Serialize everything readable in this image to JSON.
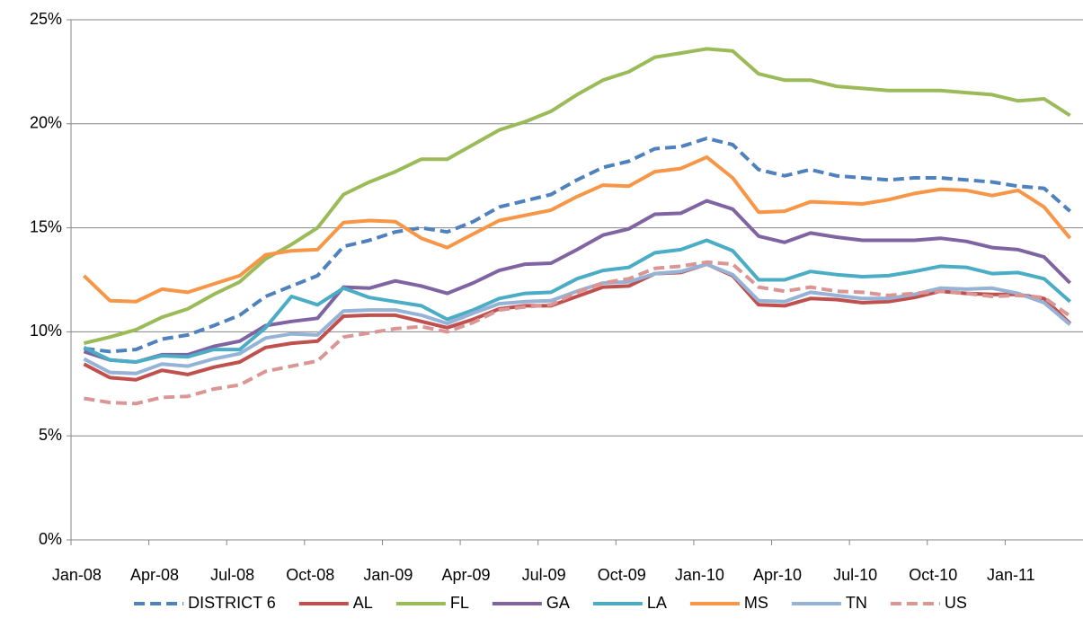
{
  "chart_data": {
    "type": "line",
    "categories": [
      "Jan-08",
      null,
      null,
      "Apr-08",
      null,
      null,
      "Jul-08",
      null,
      null,
      "Oct-08",
      null,
      null,
      "Jan-09",
      null,
      null,
      "Apr-09",
      null,
      null,
      "Jul-09",
      null,
      null,
      "Oct-09",
      null,
      null,
      "Jan-10",
      null,
      null,
      "Apr-10",
      null,
      null,
      "Jul-10",
      null,
      null,
      "Oct-10",
      null,
      null,
      "Jan-11",
      null,
      null
    ],
    "ylim": [
      0,
      25
    ],
    "yticks": [
      {
        "value": 0,
        "label": "0%"
      },
      {
        "value": 5,
        "label": "5%"
      },
      {
        "value": 10,
        "label": "10%"
      },
      {
        "value": 15,
        "label": "15%"
      },
      {
        "value": 20,
        "label": "20%"
      },
      {
        "value": 25,
        "label": "25%"
      }
    ],
    "grid": true,
    "legend": "bottom",
    "series": [
      {
        "name": "DISTRICT 6",
        "color": "#4f81bd",
        "dashed": true,
        "values": [
          9.2,
          9.05,
          9.15,
          9.65,
          9.85,
          10.3,
          10.8,
          11.7,
          12.2,
          12.7,
          14.1,
          14.4,
          14.8,
          15.0,
          14.8,
          15.3,
          16.0,
          16.3,
          16.6,
          17.3,
          17.9,
          18.2,
          18.8,
          18.9,
          19.3,
          19.0,
          17.8,
          17.5,
          17.8,
          17.5,
          17.4,
          17.3,
          17.4,
          17.4,
          17.3,
          17.2,
          17.0,
          16.9,
          15.8
        ]
      },
      {
        "name": "AL",
        "color": "#c0504d",
        "dashed": false,
        "values": [
          8.45,
          7.8,
          7.7,
          8.15,
          7.95,
          8.3,
          8.55,
          9.25,
          9.45,
          9.55,
          10.75,
          10.8,
          10.8,
          10.5,
          10.2,
          10.6,
          11.1,
          11.25,
          11.25,
          11.7,
          12.15,
          12.2,
          12.8,
          12.85,
          13.25,
          12.7,
          11.3,
          11.25,
          11.6,
          11.55,
          11.4,
          11.45,
          11.65,
          11.95,
          11.85,
          11.8,
          11.8,
          11.6,
          10.4
        ]
      },
      {
        "name": "FL",
        "color": "#9bbb59",
        "dashed": false,
        "values": [
          9.45,
          9.75,
          10.1,
          10.7,
          11.1,
          11.8,
          12.4,
          13.5,
          14.2,
          15.0,
          16.6,
          17.2,
          17.7,
          18.3,
          18.3,
          19.0,
          19.7,
          20.1,
          20.6,
          21.4,
          22.1,
          22.5,
          23.2,
          23.4,
          23.6,
          23.5,
          22.4,
          22.1,
          22.1,
          21.8,
          21.7,
          21.6,
          21.6,
          21.6,
          21.5,
          21.4,
          21.1,
          21.2,
          20.4
        ]
      },
      {
        "name": "GA",
        "color": "#8064a2",
        "dashed": false,
        "values": [
          9.05,
          8.65,
          8.55,
          8.9,
          8.9,
          9.3,
          9.55,
          10.3,
          10.5,
          10.65,
          12.15,
          12.1,
          12.45,
          12.2,
          11.85,
          12.35,
          12.95,
          13.25,
          13.3,
          13.95,
          14.65,
          14.95,
          15.65,
          15.7,
          16.3,
          15.9,
          14.6,
          14.3,
          14.75,
          14.55,
          14.4,
          14.4,
          14.4,
          14.5,
          14.35,
          14.05,
          13.95,
          13.6,
          12.35
        ]
      },
      {
        "name": "LA",
        "color": "#4bacc6",
        "dashed": false,
        "values": [
          9.25,
          8.65,
          8.55,
          8.85,
          8.8,
          9.15,
          9.15,
          10.2,
          11.7,
          11.3,
          12.1,
          11.65,
          11.45,
          11.25,
          10.6,
          11.05,
          11.6,
          11.85,
          11.9,
          12.55,
          12.95,
          13.1,
          13.8,
          13.95,
          14.4,
          13.9,
          12.5,
          12.5,
          12.9,
          12.75,
          12.65,
          12.7,
          12.9,
          13.15,
          13.1,
          12.8,
          12.85,
          12.55,
          11.45
        ]
      },
      {
        "name": "MS",
        "color": "#f79646",
        "dashed": false,
        "values": [
          12.7,
          11.5,
          11.45,
          12.05,
          11.9,
          12.3,
          12.7,
          13.7,
          13.9,
          13.95,
          15.25,
          15.35,
          15.3,
          14.5,
          14.05,
          14.7,
          15.35,
          15.6,
          15.85,
          16.5,
          17.05,
          17.0,
          17.7,
          17.85,
          18.4,
          17.4,
          15.75,
          15.8,
          16.25,
          16.2,
          16.15,
          16.35,
          16.65,
          16.85,
          16.8,
          16.55,
          16.8,
          16.0,
          14.5
        ]
      },
      {
        "name": "TN",
        "color": "#95b3d7",
        "dashed": false,
        "values": [
          8.7,
          8.05,
          8.0,
          8.45,
          8.35,
          8.7,
          8.95,
          9.7,
          9.9,
          9.85,
          11.0,
          11.05,
          11.05,
          10.8,
          10.4,
          10.9,
          11.35,
          11.45,
          11.5,
          11.95,
          12.35,
          12.4,
          12.8,
          12.9,
          13.25,
          12.75,
          11.5,
          11.45,
          11.9,
          11.75,
          11.6,
          11.6,
          11.8,
          12.1,
          12.05,
          12.1,
          11.85,
          11.4,
          10.35
        ]
      },
      {
        "name": "US",
        "color": "#d99694",
        "dashed": true,
        "values": [
          6.8,
          6.6,
          6.55,
          6.85,
          6.9,
          7.25,
          7.45,
          8.1,
          8.35,
          8.6,
          9.75,
          9.95,
          10.15,
          10.25,
          10.0,
          10.45,
          11.05,
          11.2,
          11.3,
          11.9,
          12.35,
          12.55,
          13.05,
          13.15,
          13.35,
          13.25,
          12.15,
          11.95,
          12.15,
          11.95,
          11.9,
          11.75,
          11.85,
          11.95,
          11.85,
          11.7,
          11.75,
          11.65,
          10.75
        ]
      }
    ]
  }
}
